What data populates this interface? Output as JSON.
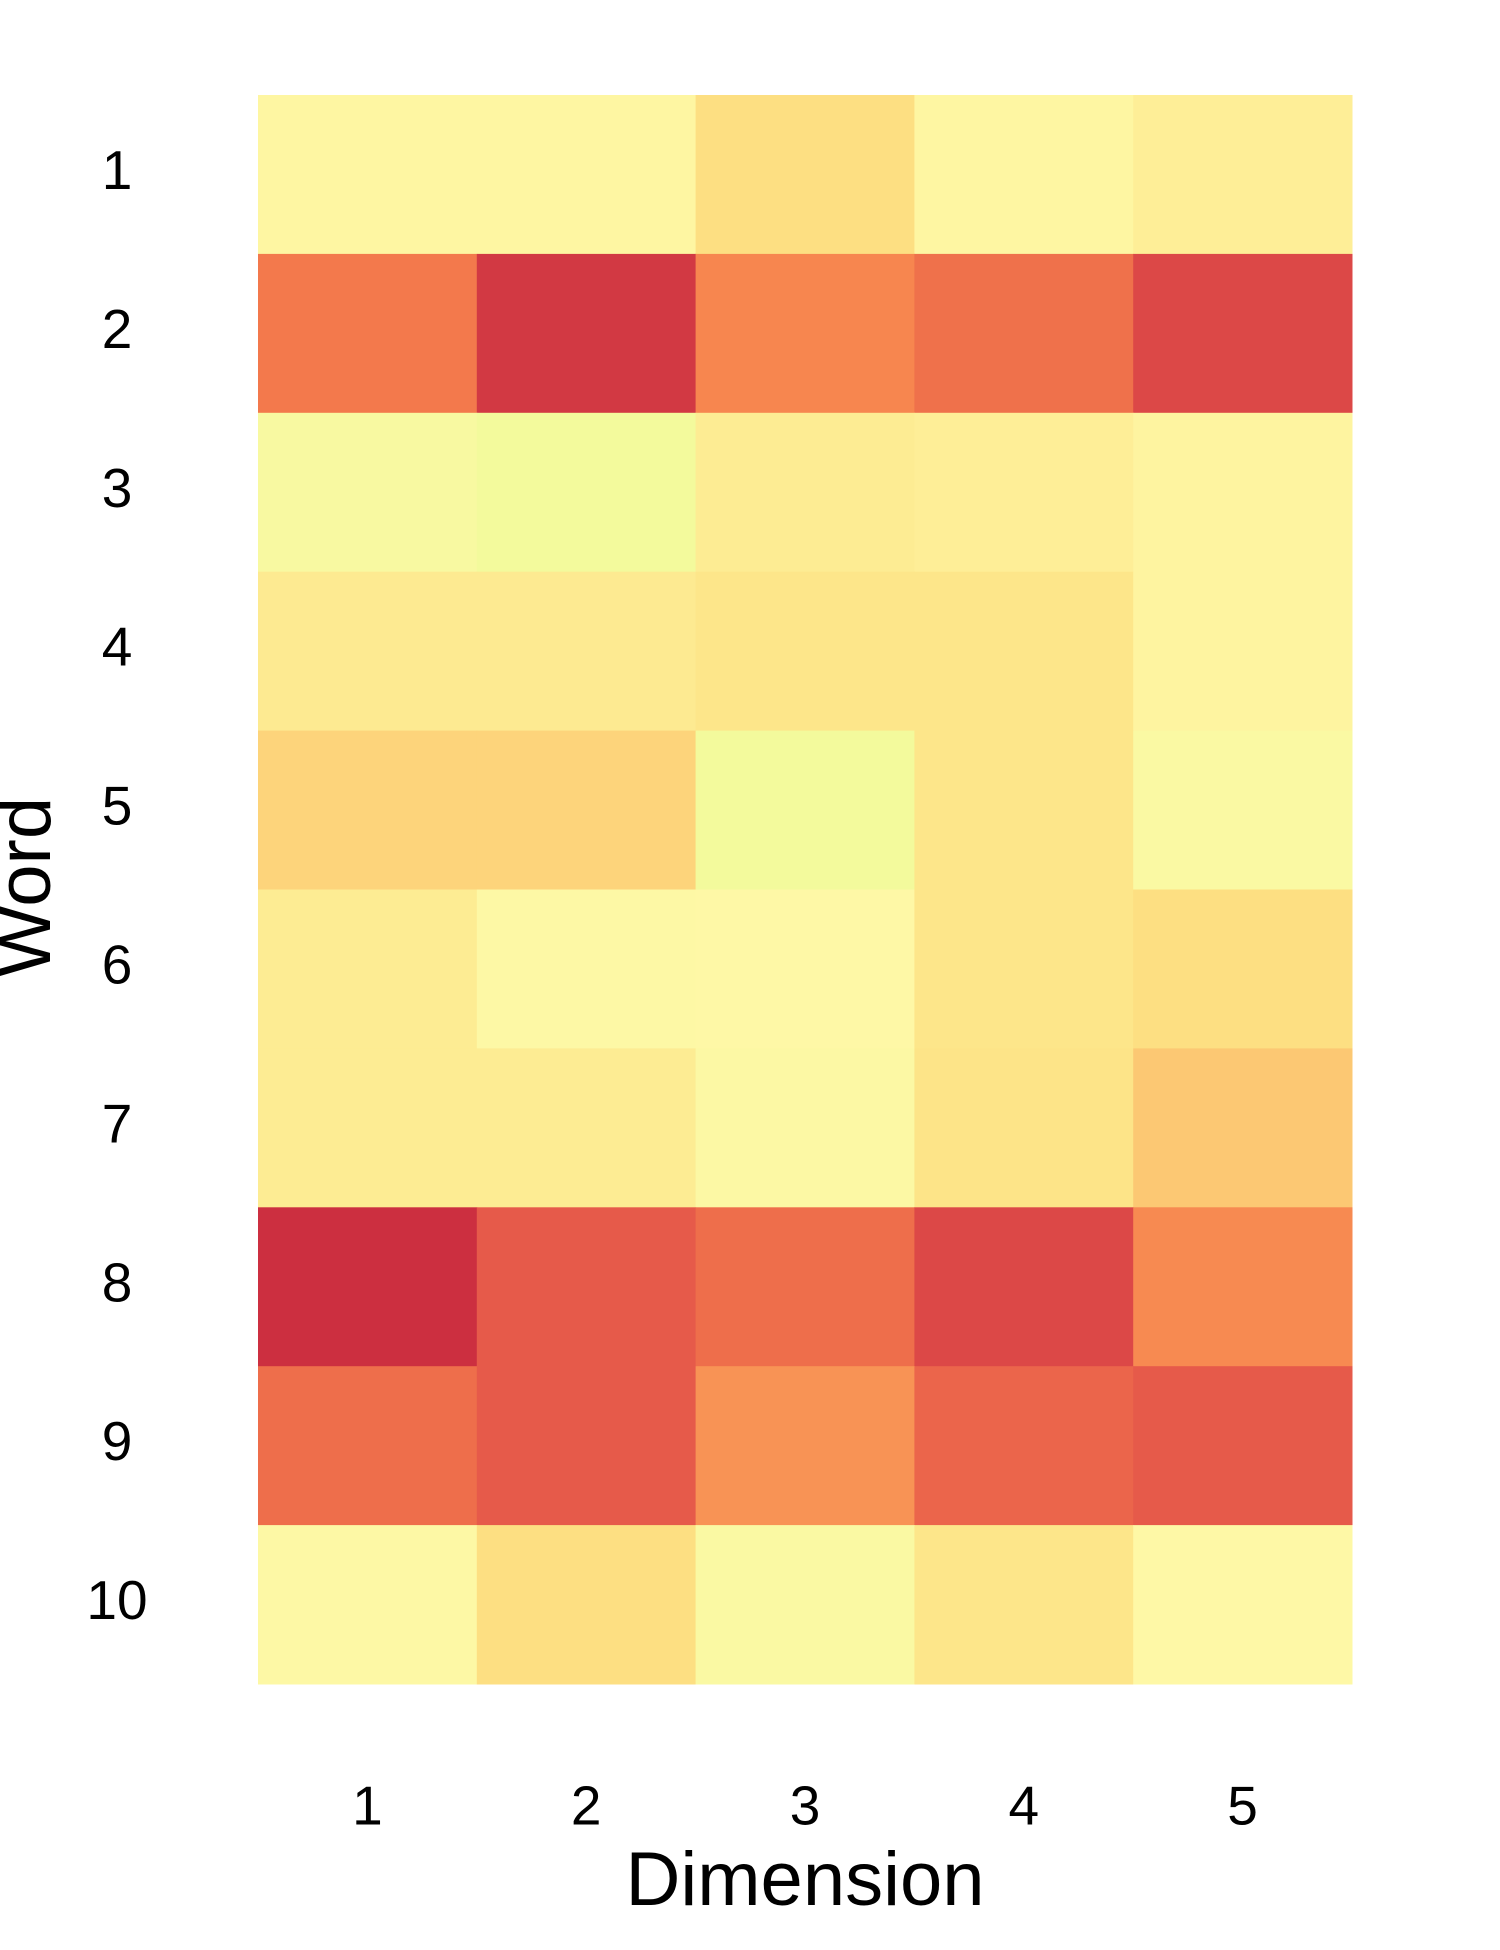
{
  "chart_data": {
    "type": "heatmap",
    "x_label": "Dimension",
    "y_label": "Word",
    "x_categories": [
      "1",
      "2",
      "3",
      "4",
      "5"
    ],
    "y_categories": [
      "1",
      "2",
      "3",
      "4",
      "5",
      "6",
      "7",
      "8",
      "9",
      "10"
    ],
    "values": [
      [
        0.25,
        0.25,
        0.4,
        0.25,
        0.3
      ],
      [
        0.72,
        0.96,
        0.68,
        0.75,
        0.9
      ],
      [
        0.15,
        0.08,
        0.32,
        0.3,
        0.26
      ],
      [
        0.33,
        0.33,
        0.36,
        0.36,
        0.26
      ],
      [
        0.45,
        0.45,
        0.08,
        0.36,
        0.18
      ],
      [
        0.32,
        0.22,
        0.23,
        0.36,
        0.4
      ],
      [
        0.32,
        0.32,
        0.2,
        0.37,
        0.5
      ],
      [
        1.0,
        0.83,
        0.76,
        0.9,
        0.67
      ],
      [
        0.76,
        0.83,
        0.65,
        0.79,
        0.83
      ],
      [
        0.22,
        0.4,
        0.18,
        0.36,
        0.23
      ]
    ],
    "colormap": [
      "#f3fa9c",
      "#fef8a6",
      "#fde284",
      "#fcbf6d",
      "#f6814c",
      "#e4554a",
      "#cc2f40"
    ]
  }
}
